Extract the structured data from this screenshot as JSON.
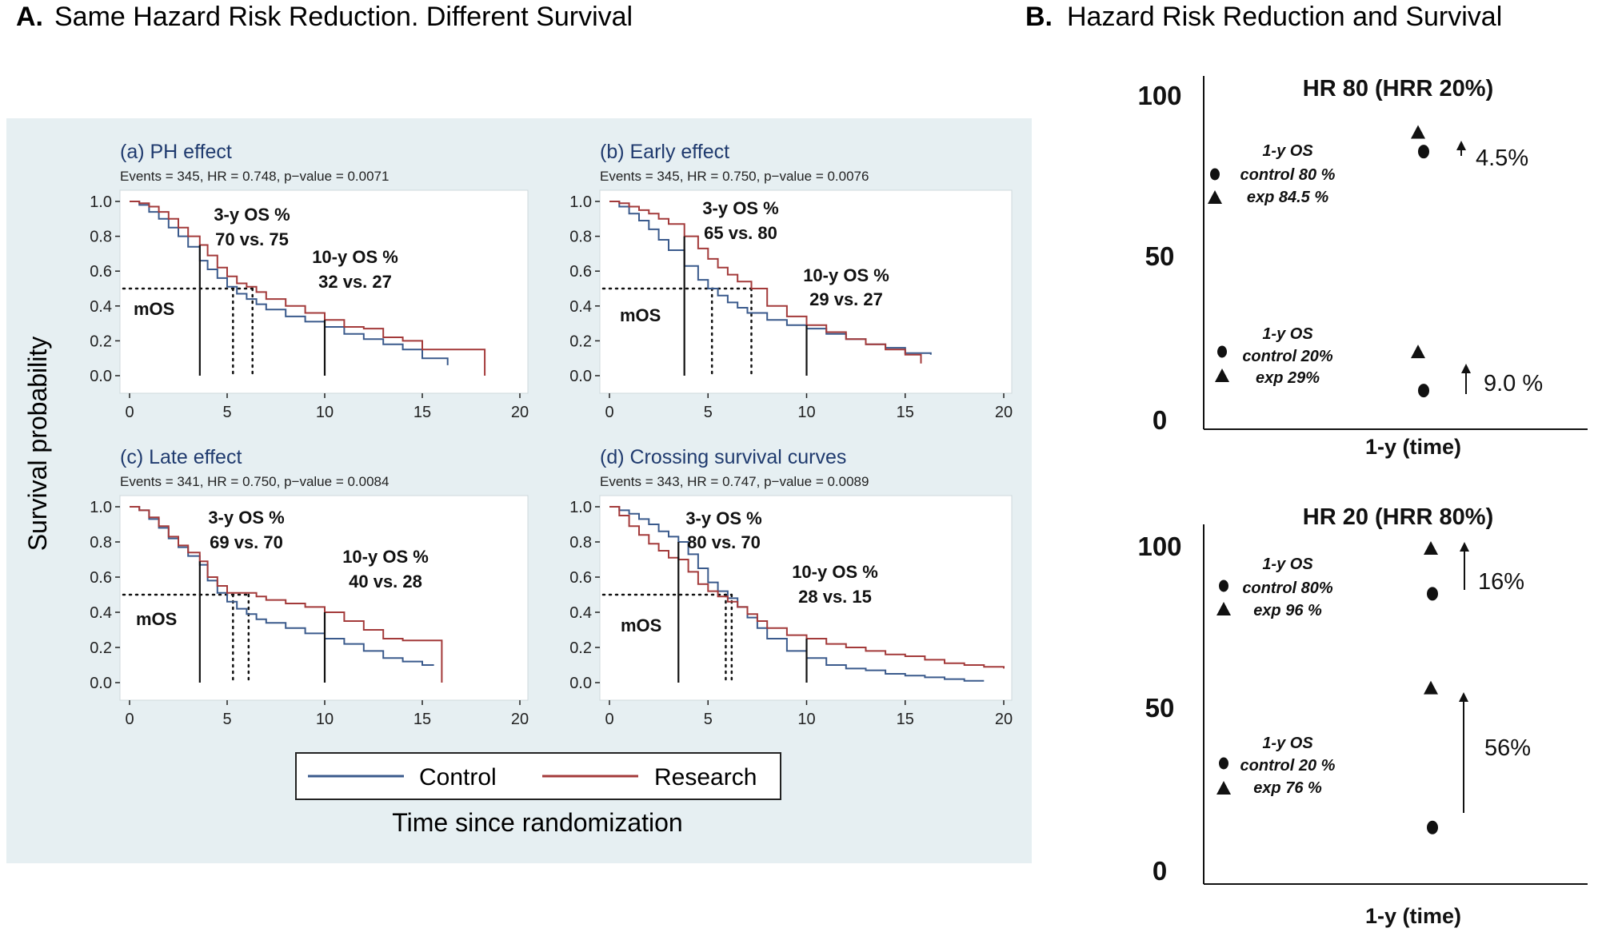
{
  "figure": {
    "panel_a_letter": "A.",
    "panel_a_title": "Same Hazard Risk Reduction. Different Survival",
    "panel_b_letter": "B.",
    "panel_b_title": "Hazard Risk Reduction and Survival"
  },
  "colors": {
    "control": "#3a5a8c",
    "research": "#a33a3a",
    "panel_a_bg": "#e6eff2",
    "subplot_title": "#1f3a6e"
  },
  "chart_data": [
    {
      "type": "line",
      "title": "(a) PH effect",
      "subtitle": "Events = 345, HR =  0.748, p−value = 0.0071",
      "xlim": [
        0,
        20
      ],
      "ylim": [
        0,
        1
      ],
      "x_ticks": [
        "0",
        "5",
        "10",
        "15",
        "20"
      ],
      "y_ticks": [
        "0.0",
        "0.2",
        "0.4",
        "0.6",
        "0.8",
        "1.0"
      ],
      "series": [
        {
          "name": "Control",
          "x": [
            0,
            0.5,
            1,
            1.5,
            2,
            2.5,
            3,
            3.6,
            4,
            4.5,
            5,
            5.5,
            6,
            6.5,
            7,
            8,
            9,
            10,
            11,
            12,
            13,
            14,
            15,
            16.3
          ],
          "y": [
            1.0,
            0.98,
            0.94,
            0.9,
            0.85,
            0.8,
            0.74,
            0.66,
            0.61,
            0.56,
            0.51,
            0.47,
            0.44,
            0.41,
            0.38,
            0.34,
            0.31,
            0.28,
            0.24,
            0.21,
            0.18,
            0.15,
            0.1,
            0.06
          ]
        },
        {
          "name": "Research",
          "x": [
            0,
            0.5,
            1,
            1.5,
            2,
            2.5,
            3,
            3.6,
            4,
            4.5,
            5,
            5.5,
            6,
            6.5,
            7,
            8,
            9,
            10,
            11,
            12,
            13,
            14,
            15,
            16,
            17,
            18.2
          ],
          "y": [
            1.0,
            0.99,
            0.97,
            0.94,
            0.9,
            0.85,
            0.8,
            0.75,
            0.69,
            0.62,
            0.57,
            0.53,
            0.51,
            0.48,
            0.44,
            0.4,
            0.36,
            0.32,
            0.28,
            0.27,
            0.22,
            0.2,
            0.15,
            0.15,
            0.15,
            0.15
          ]
        }
      ],
      "median_lines": [
        5.3,
        6.3
      ],
      "annotation_lines": [
        3.6,
        10
      ],
      "labels": {
        "os3_title": "3-y OS %",
        "os3_values": "70 vs. 75",
        "os10_title": "10-y OS %",
        "os10_values": "32 vs. 27",
        "mos": "mOS"
      }
    },
    {
      "type": "line",
      "title": "(b) Early effect",
      "subtitle": "Events = 345, HR =  0.750, p−value = 0.0076",
      "xlim": [
        0,
        20
      ],
      "ylim": [
        0,
        1
      ],
      "x_ticks": [
        "0",
        "5",
        "10",
        "15",
        "20"
      ],
      "y_ticks": [
        "0.0",
        "0.2",
        "0.4",
        "0.6",
        "0.8",
        "1.0"
      ],
      "series": [
        {
          "name": "Control",
          "x": [
            0,
            0.5,
            1,
            1.5,
            2,
            2.5,
            3,
            3.8,
            4.5,
            5,
            5.5,
            6,
            6.5,
            7,
            8,
            9,
            10,
            11,
            12,
            13,
            14,
            15,
            16.3
          ],
          "y": [
            1.0,
            0.97,
            0.93,
            0.89,
            0.84,
            0.78,
            0.72,
            0.63,
            0.55,
            0.5,
            0.46,
            0.42,
            0.39,
            0.36,
            0.32,
            0.29,
            0.27,
            0.24,
            0.21,
            0.18,
            0.16,
            0.13,
            0.12
          ]
        },
        {
          "name": "Research",
          "x": [
            0,
            0.5,
            1,
            1.5,
            2,
            2.5,
            3,
            3.8,
            4.5,
            5,
            5.5,
            6,
            6.5,
            7.2,
            8,
            9,
            10,
            11,
            12,
            13,
            14,
            15,
            15.8
          ],
          "y": [
            1.0,
            0.99,
            0.97,
            0.95,
            0.93,
            0.9,
            0.87,
            0.8,
            0.73,
            0.67,
            0.62,
            0.58,
            0.54,
            0.5,
            0.4,
            0.34,
            0.29,
            0.25,
            0.21,
            0.18,
            0.15,
            0.12,
            0.07
          ]
        }
      ],
      "median_lines": [
        5.2,
        7.2
      ],
      "annotation_lines": [
        3.8,
        10
      ],
      "labels": {
        "os3_title": "3-y OS %",
        "os3_values": "65 vs. 80",
        "os10_title": "10-y OS %",
        "os10_values": "29 vs. 27",
        "mos": "mOS"
      }
    },
    {
      "type": "line",
      "title": "(c) Late effect",
      "subtitle": "Events = 341, HR =  0.750, p−value = 0.0084",
      "xlim": [
        0,
        20
      ],
      "ylim": [
        0,
        1
      ],
      "x_ticks": [
        "0",
        "5",
        "10",
        "15",
        "20"
      ],
      "y_ticks": [
        "0.0",
        "0.2",
        "0.4",
        "0.6",
        "0.8",
        "1.0"
      ],
      "series": [
        {
          "name": "Control",
          "x": [
            0,
            0.5,
            1,
            1.5,
            2,
            2.5,
            3,
            3.6,
            4,
            4.5,
            5,
            5.5,
            6,
            6.5,
            7,
            8,
            9,
            10,
            11,
            12,
            13,
            14,
            15,
            15.6
          ],
          "y": [
            1.0,
            0.98,
            0.93,
            0.88,
            0.82,
            0.77,
            0.72,
            0.67,
            0.58,
            0.51,
            0.46,
            0.42,
            0.39,
            0.36,
            0.34,
            0.31,
            0.28,
            0.25,
            0.22,
            0.18,
            0.14,
            0.12,
            0.1,
            0.1
          ]
        },
        {
          "name": "Research",
          "x": [
            0,
            0.5,
            1,
            1.5,
            2,
            2.5,
            3,
            3.6,
            4,
            4.5,
            5,
            5.5,
            6,
            6.5,
            7,
            8,
            9,
            10,
            11,
            12,
            13,
            14,
            15,
            16
          ],
          "y": [
            1.0,
            0.98,
            0.94,
            0.89,
            0.83,
            0.78,
            0.74,
            0.69,
            0.6,
            0.55,
            0.51,
            0.51,
            0.51,
            0.49,
            0.47,
            0.45,
            0.43,
            0.4,
            0.35,
            0.3,
            0.25,
            0.24,
            0.24,
            0.24
          ]
        }
      ],
      "median_lines": [
        5.3,
        6.1
      ],
      "annotation_lines": [
        3.6,
        10
      ],
      "labels": {
        "os3_title": "3-y OS %",
        "os3_values": "69 vs. 70",
        "os10_title": "10-y OS %",
        "os10_values": "40 vs. 28",
        "mos": "mOS"
      }
    },
    {
      "type": "line",
      "title": "(d) Crossing survival curves",
      "subtitle": "Events = 343, HR =  0.747, p−value = 0.0089",
      "xlim": [
        0,
        20
      ],
      "ylim": [
        0,
        1
      ],
      "x_ticks": [
        "0",
        "5",
        "10",
        "15",
        "20"
      ],
      "y_ticks": [
        "0.0",
        "0.2",
        "0.4",
        "0.6",
        "0.8",
        "1.0"
      ],
      "series": [
        {
          "name": "Control",
          "x": [
            0,
            0.5,
            1,
            1.5,
            2,
            2.5,
            3,
            3.5,
            4,
            4.5,
            5,
            5.5,
            6,
            6.5,
            7,
            7.5,
            8,
            9,
            10,
            11,
            12,
            13,
            14,
            15,
            16,
            17,
            18,
            19
          ],
          "y": [
            1.0,
            0.98,
            0.96,
            0.93,
            0.9,
            0.86,
            0.83,
            0.8,
            0.73,
            0.65,
            0.57,
            0.52,
            0.48,
            0.43,
            0.37,
            0.31,
            0.25,
            0.18,
            0.14,
            0.1,
            0.08,
            0.07,
            0.05,
            0.04,
            0.03,
            0.02,
            0.01,
            0.01
          ]
        },
        {
          "name": "Research",
          "x": [
            0,
            0.5,
            1,
            1.5,
            2,
            2.5,
            3,
            3.5,
            4,
            4.5,
            5,
            5.5,
            6,
            6.5,
            7,
            7.5,
            8,
            9,
            10,
            11,
            12,
            13,
            14,
            15,
            16,
            17,
            18,
            19,
            20
          ],
          "y": [
            1.0,
            0.95,
            0.89,
            0.84,
            0.79,
            0.75,
            0.71,
            0.7,
            0.63,
            0.56,
            0.52,
            0.49,
            0.46,
            0.43,
            0.39,
            0.35,
            0.31,
            0.27,
            0.25,
            0.22,
            0.2,
            0.18,
            0.16,
            0.15,
            0.13,
            0.11,
            0.1,
            0.09,
            0.08
          ]
        }
      ],
      "median_lines": [
        5.9,
        6.2
      ],
      "annotation_lines": [
        3.5,
        10
      ],
      "labels": {
        "os3_title": "3-y OS %",
        "os3_values": "80 vs. 70",
        "os10_title": "10-y OS %",
        "os10_values": "28 vs. 15",
        "mos": "mOS"
      }
    },
    {
      "type": "scatter",
      "title": "HR 80 (HRR 20%)",
      "ylim": [
        0,
        100
      ],
      "y_ticks": [
        "100",
        "50",
        "0"
      ],
      "xlabel": "1-y (time)",
      "series": [
        {
          "name": "control",
          "marker": "circle",
          "y": [
            83,
            9
          ]
        },
        {
          "name": "exp",
          "marker": "triangle",
          "y": [
            89,
            21
          ]
        }
      ],
      "groups": [
        {
          "legend_title": "1-y OS",
          "control_label": "control  80 %",
          "exp_label": "exp  84.5 %",
          "diff_label": "4.5%"
        },
        {
          "legend_title": "1-y OS",
          "control_label": "control 20%",
          "exp_label": "exp 29%",
          "diff_label": "9.0 %"
        }
      ]
    },
    {
      "type": "scatter",
      "title": "HR 20 (HRR 80%)",
      "ylim": [
        0,
        100
      ],
      "y_ticks": [
        "100",
        "50",
        "0"
      ],
      "xlabel": "1-y (time)",
      "series": [
        {
          "name": "control",
          "marker": "circle",
          "y": [
            85,
            13
          ]
        },
        {
          "name": "exp",
          "marker": "triangle",
          "y": [
            99,
            56
          ]
        }
      ],
      "groups": [
        {
          "legend_title": "1-y OS",
          "control_label": "control 80%",
          "exp_label": "exp 96 %",
          "diff_label": "16%"
        },
        {
          "legend_title": "1-y OS",
          "control_label": "control 20 %",
          "exp_label": "exp  76 %",
          "diff_label": "56%"
        }
      ]
    }
  ],
  "panel_a": {
    "y_axis_label": "Survival probability",
    "x_axis_label": "Time since randomization",
    "legend": {
      "control": "Control",
      "research": "Research"
    }
  }
}
